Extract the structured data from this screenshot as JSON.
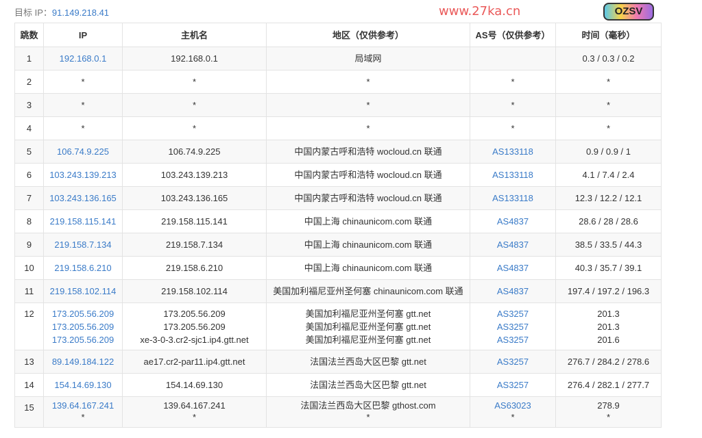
{
  "target": {
    "label": "目标 IP：",
    "ip": "91.149.218.41"
  },
  "headers": [
    "跳数",
    "IP",
    "主机名",
    "地区（仅供参考）",
    "AS号（仅供参考）",
    "时间（毫秒）"
  ],
  "rows": [
    {
      "hop": "1",
      "ip": [
        "192.168.0.1"
      ],
      "host": [
        "192.168.0.1"
      ],
      "region": [
        "局域网"
      ],
      "as": [
        ""
      ],
      "time": [
        "0.3 / 0.3 / 0.2"
      ]
    },
    {
      "hop": "2",
      "ip": [
        "*"
      ],
      "host": [
        "*"
      ],
      "region": [
        "*"
      ],
      "as": [
        "*"
      ],
      "time": [
        "*"
      ]
    },
    {
      "hop": "3",
      "ip": [
        "*"
      ],
      "host": [
        "*"
      ],
      "region": [
        "*"
      ],
      "as": [
        "*"
      ],
      "time": [
        "*"
      ]
    },
    {
      "hop": "4",
      "ip": [
        "*"
      ],
      "host": [
        "*"
      ],
      "region": [
        "*"
      ],
      "as": [
        "*"
      ],
      "time": [
        "*"
      ]
    },
    {
      "hop": "5",
      "ip": [
        "106.74.9.225"
      ],
      "host": [
        "106.74.9.225"
      ],
      "region": [
        "中国内蒙古呼和浩特 wocloud.cn 联通"
      ],
      "as": [
        "AS133118"
      ],
      "time": [
        "0.9 / 0.9 / 1"
      ]
    },
    {
      "hop": "6",
      "ip": [
        "103.243.139.213"
      ],
      "host": [
        "103.243.139.213"
      ],
      "region": [
        "中国内蒙古呼和浩特 wocloud.cn 联通"
      ],
      "as": [
        "AS133118"
      ],
      "time": [
        "4.1 / 7.4 / 2.4"
      ]
    },
    {
      "hop": "7",
      "ip": [
        "103.243.136.165"
      ],
      "host": [
        "103.243.136.165"
      ],
      "region": [
        "中国内蒙古呼和浩特 wocloud.cn 联通"
      ],
      "as": [
        "AS133118"
      ],
      "time": [
        "12.3 / 12.2 / 12.1"
      ]
    },
    {
      "hop": "8",
      "ip": [
        "219.158.115.141"
      ],
      "host": [
        "219.158.115.141"
      ],
      "region": [
        "中国上海 chinaunicom.com 联通"
      ],
      "as": [
        "AS4837"
      ],
      "time": [
        "28.6 / 28 / 28.6"
      ]
    },
    {
      "hop": "9",
      "ip": [
        "219.158.7.134"
      ],
      "host": [
        "219.158.7.134"
      ],
      "region": [
        "中国上海 chinaunicom.com 联通"
      ],
      "as": [
        "AS4837"
      ],
      "time": [
        "38.5 / 33.5 / 44.3"
      ]
    },
    {
      "hop": "10",
      "ip": [
        "219.158.6.210"
      ],
      "host": [
        "219.158.6.210"
      ],
      "region": [
        "中国上海 chinaunicom.com 联通"
      ],
      "as": [
        "AS4837"
      ],
      "time": [
        "40.3 / 35.7 / 39.1"
      ]
    },
    {
      "hop": "11",
      "ip": [
        "219.158.102.114"
      ],
      "host": [
        "219.158.102.114"
      ],
      "region": [
        "美国加利福尼亚州圣何塞 chinaunicom.com 联通"
      ],
      "as": [
        "AS4837"
      ],
      "time": [
        "197.4 / 197.2 / 196.3"
      ]
    },
    {
      "hop": "12",
      "ip": [
        "173.205.56.209",
        "173.205.56.209",
        "173.205.56.209"
      ],
      "host": [
        "173.205.56.209",
        "173.205.56.209",
        "xe-3-0-3.cr2-sjc1.ip4.gtt.net"
      ],
      "region": [
        "美国加利福尼亚州圣何塞 gtt.net",
        "美国加利福尼亚州圣何塞 gtt.net",
        "美国加利福尼亚州圣何塞 gtt.net"
      ],
      "as": [
        "AS3257",
        "AS3257",
        "AS3257"
      ],
      "time": [
        "201.3",
        "201.3",
        "201.6"
      ]
    },
    {
      "hop": "13",
      "ip": [
        "89.149.184.122"
      ],
      "host": [
        "ae17.cr2-par11.ip4.gtt.net"
      ],
      "region": [
        "法国法兰西岛大区巴黎 gtt.net"
      ],
      "as": [
        "AS3257"
      ],
      "time": [
        "276.7 / 284.2 / 278.6"
      ]
    },
    {
      "hop": "14",
      "ip": [
        "154.14.69.130"
      ],
      "host": [
        "154.14.69.130"
      ],
      "region": [
        "法国法兰西岛大区巴黎 gtt.net"
      ],
      "as": [
        "AS3257"
      ],
      "time": [
        "276.4 / 282.1 / 277.7"
      ]
    },
    {
      "hop": "15",
      "ip": [
        "139.64.167.241",
        "*"
      ],
      "host": [
        "139.64.167.241",
        "*"
      ],
      "region": [
        "法国法兰西岛大区巴黎 gthost.com",
        "*"
      ],
      "as": [
        "AS63023",
        "*"
      ],
      "time": [
        "278.9",
        "*"
      ]
    }
  ],
  "watermark": "www.27ka.cn",
  "sticker": "OZSV",
  "colors": {
    "link": "#3a7bc8",
    "watermark": "#e63c3c"
  }
}
